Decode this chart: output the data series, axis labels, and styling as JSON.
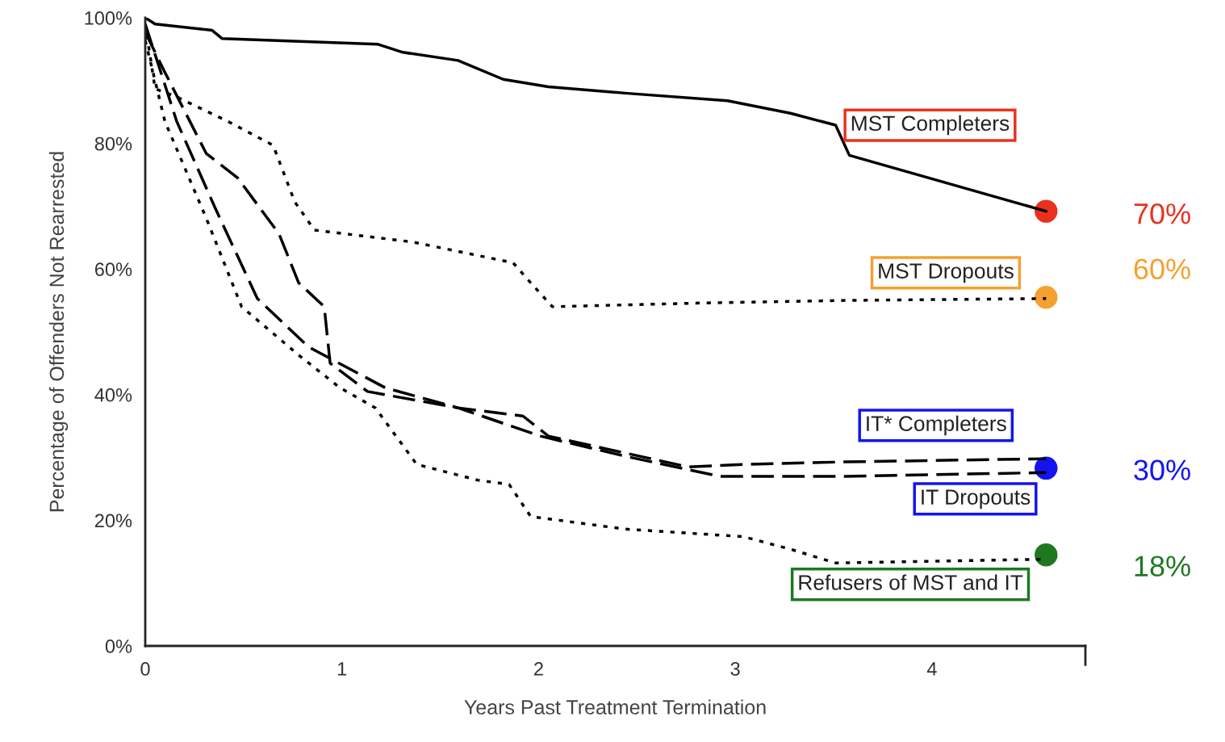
{
  "chart_data": {
    "type": "line",
    "xlabel": "Years Past Treatment Termination",
    "ylabel": "Percentage of Offenders Not Rearrested",
    "xlim": [
      0,
      4.78
    ],
    "ylim": [
      0,
      100
    ],
    "xticks": [
      0,
      1,
      2,
      3,
      4
    ],
    "yticks": [
      {
        "value": 0,
        "label": "0%"
      },
      {
        "value": 20,
        "label": "20%"
      },
      {
        "value": 40,
        "label": "40%"
      },
      {
        "value": 60,
        "label": "60%"
      },
      {
        "value": 80,
        "label": "80%"
      },
      {
        "value": 100,
        "label": "100%"
      }
    ],
    "grid": false,
    "legend": false,
    "series": [
      {
        "name": "MST Completers",
        "color": "#000000",
        "line_style": "solid",
        "x": [
          0,
          0.05,
          0.34,
          0.39,
          1.18,
          1.31,
          1.59,
          1.82,
          2.05,
          2.44,
          2.96,
          3.28,
          3.51,
          3.58,
          4.58
        ],
        "values": [
          100,
          99,
          98,
          96.7,
          95.8,
          94.5,
          93.2,
          90.2,
          89,
          88,
          86.8,
          84.8,
          82.9,
          78.1,
          69.2
        ]
      },
      {
        "name": "MST Dropouts",
        "color": "#000000",
        "line_style": "dotted",
        "x": [
          0,
          0.05,
          0.16,
          0.42,
          0.65,
          0.76,
          0.86,
          1.36,
          1.87,
          1.96,
          2.07,
          2.84,
          3.56,
          4.58
        ],
        "values": [
          99,
          88.7,
          87.4,
          83.5,
          79.7,
          70.7,
          66.2,
          64.3,
          61,
          57.8,
          54,
          54.6,
          55,
          55.3
        ]
      },
      {
        "name": "IT* Completers",
        "color": "#000000",
        "line_style": "dashed",
        "x": [
          0,
          0.1,
          0.31,
          0.47,
          0.68,
          0.78,
          0.91,
          0.94,
          1.13,
          1.59,
          1.92,
          2.05,
          2.76,
          3.04,
          3.56,
          4.58
        ],
        "values": [
          97.7,
          91.3,
          78.4,
          74.5,
          65.6,
          57.8,
          54,
          45,
          40.5,
          37.9,
          36.6,
          33.4,
          28.5,
          28.9,
          29.3,
          29.8
        ]
      },
      {
        "name": "IT Dropouts",
        "color": "#000000",
        "line_style": "dashed",
        "x": [
          0,
          0.16,
          0.36,
          0.57,
          0.83,
          1.22,
          1.59,
          2.01,
          2.44,
          2.92,
          3.56,
          4.58
        ],
        "values": [
          99,
          83.5,
          69.4,
          55.3,
          47.6,
          41.1,
          37.9,
          33.4,
          30.2,
          27,
          27,
          27.6
        ]
      },
      {
        "name": "Refusers of MST and IT",
        "color": "#000000",
        "line_style": "dotted",
        "x": [
          0,
          0.1,
          0.31,
          0.49,
          0.78,
          0.99,
          1.17,
          1.38,
          1.69,
          1.85,
          1.96,
          2.44,
          3.04,
          3.28,
          3.51,
          4.58
        ],
        "values": [
          96.4,
          83.5,
          68.1,
          54,
          46.3,
          41.1,
          37.9,
          28.9,
          26.4,
          25.7,
          20.6,
          18.6,
          17.4,
          15.4,
          13.2,
          13.8
        ]
      },
      {
        "type": "scatter",
        "x": [
          4.58,
          4.58,
          4.58,
          4.58
        ],
        "values": [
          69.2,
          55.5,
          28.3,
          14.5
        ],
        "colors": [
          "#e8321e",
          "#f5a030",
          "#1414f0",
          "#1e7820"
        ]
      }
    ],
    "annotations": [
      "70%",
      "60%",
      "30%",
      "18%"
    ]
  }
}
